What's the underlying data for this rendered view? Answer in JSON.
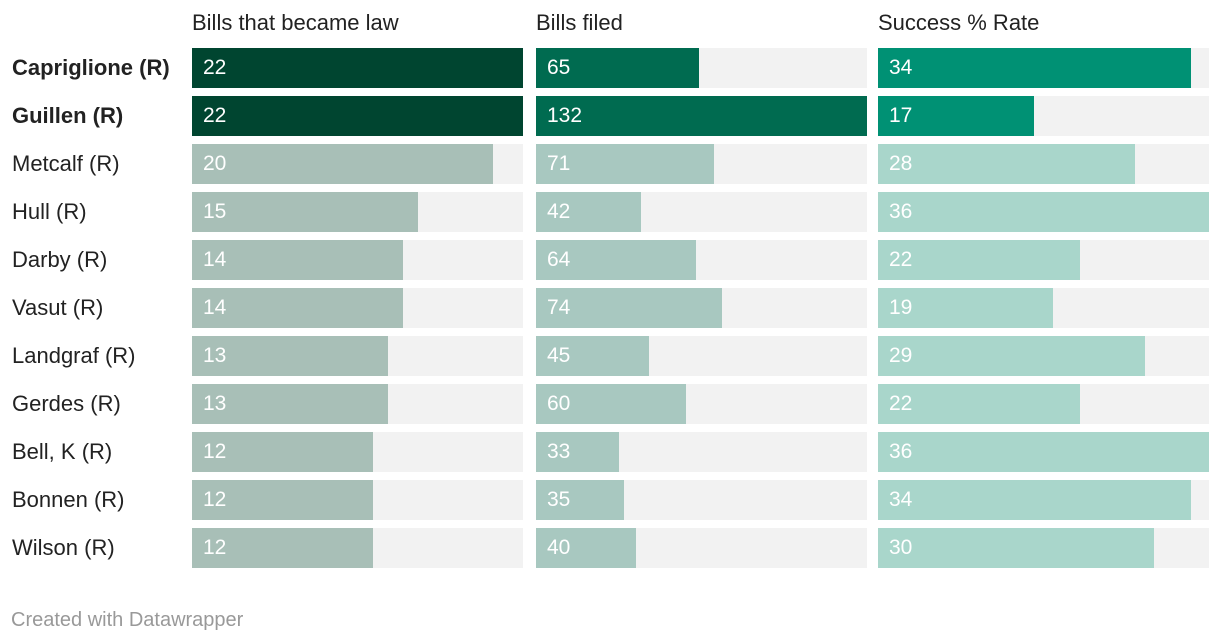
{
  "chart_data": {
    "type": "bar",
    "title": "",
    "categories": [
      "Capriglione (R)",
      "Guillen (R)",
      "Metcalf (R)",
      "Hull (R)",
      "Darby (R)",
      "Vasut (R)",
      "Landgraf (R)",
      "Gerdes (R)",
      "Bell, K (R)",
      "Bonnen (R)",
      "Wilson (R)"
    ],
    "highlighted": [
      "Capriglione (R)",
      "Guillen (R)"
    ],
    "series": [
      {
        "name": "Bills that became law",
        "values": [
          22,
          22,
          20,
          15,
          14,
          14,
          13,
          13,
          12,
          12,
          12
        ],
        "xlim": [
          0,
          22
        ],
        "color_highlight": "#004530",
        "color_muted": "#a8bfb7"
      },
      {
        "name": "Bills filed",
        "values": [
          65,
          132,
          71,
          42,
          64,
          74,
          45,
          60,
          33,
          35,
          40
        ],
        "xlim": [
          0,
          132
        ],
        "color_highlight": "#006b50",
        "color_muted": "#a8c8c0"
      },
      {
        "name": "Success % Rate",
        "values": [
          34,
          17,
          28,
          36,
          22,
          19,
          29,
          22,
          36,
          34,
          30
        ],
        "xlim": [
          0,
          36
        ],
        "color_highlight": "#009174",
        "color_muted": "#a9d6cb"
      }
    ],
    "footer": "Created with Datawrapper"
  }
}
